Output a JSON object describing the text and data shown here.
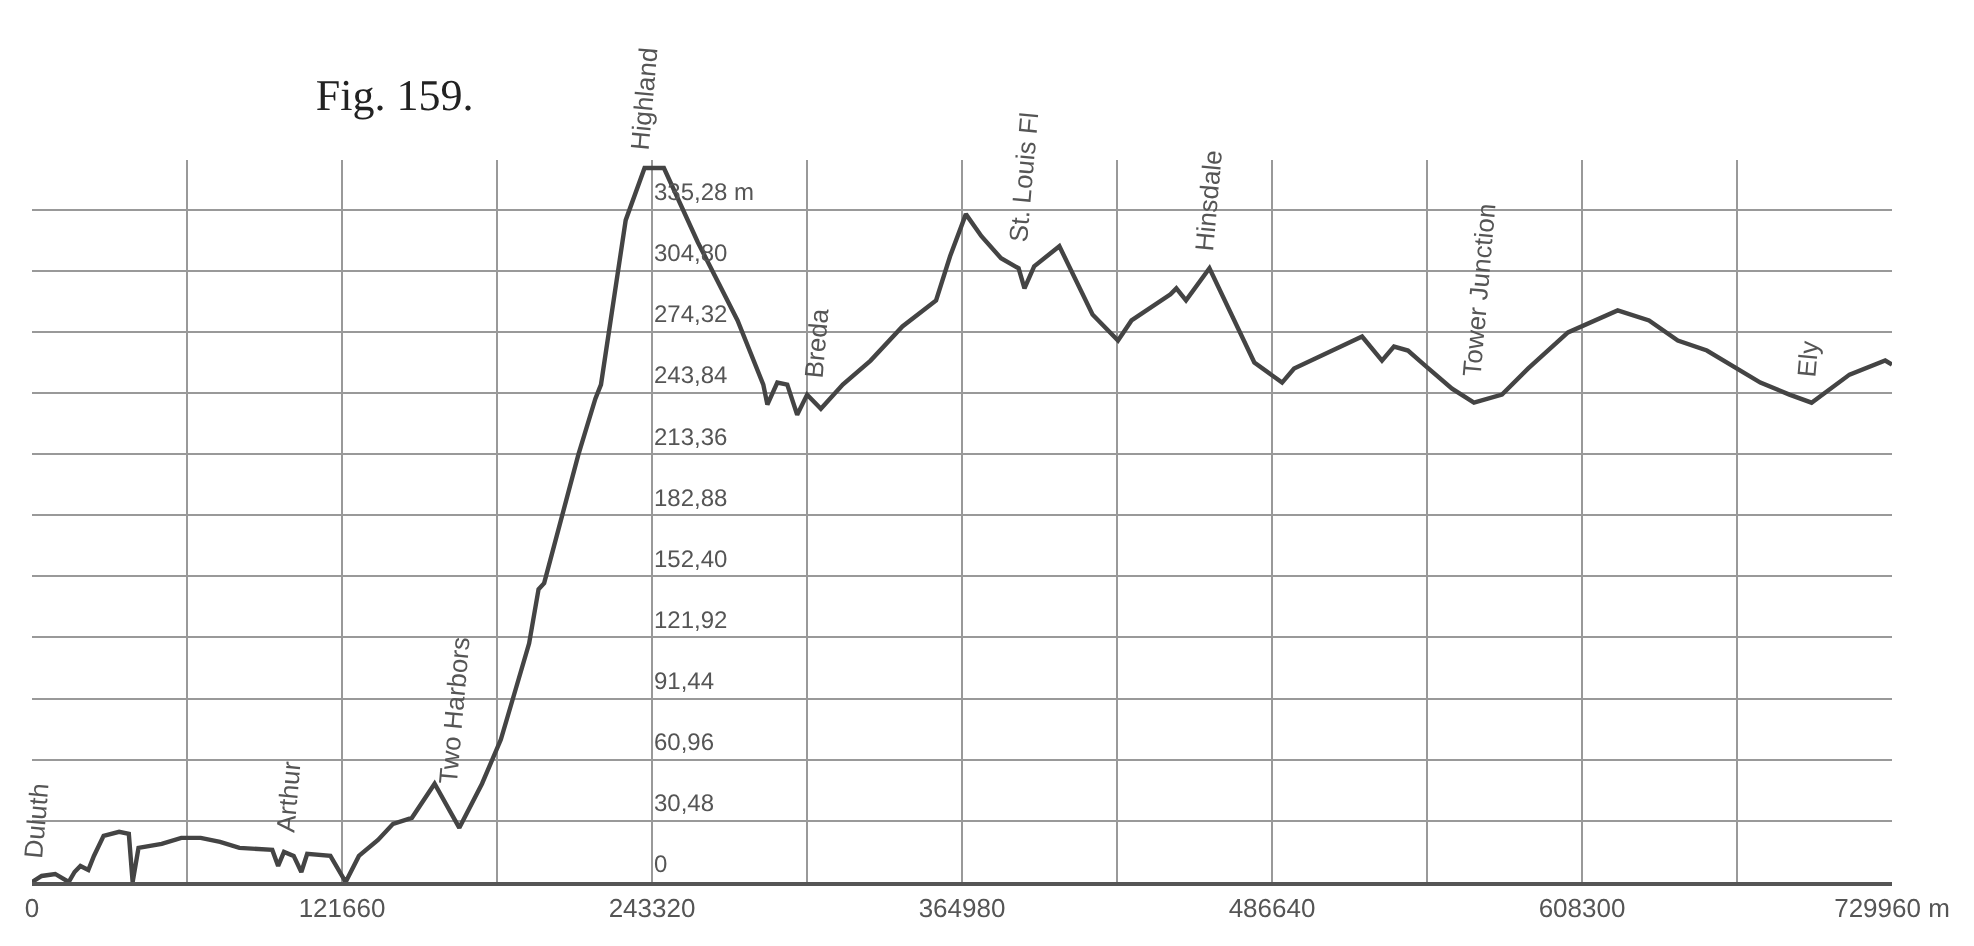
{
  "chart_data": {
    "type": "line",
    "title": "Fig. 159.",
    "x": [
      0,
      3800,
      9100,
      14400,
      16700,
      19000,
      22100,
      24300,
      28100,
      34200,
      38000,
      39500,
      41800,
      50900,
      58600,
      66200,
      73800,
      81400,
      94300,
      96600,
      98900,
      102700,
      105700,
      108000,
      117100,
      123100,
      128300,
      135800,
      141700,
      149100,
      158000,
      167700,
      176600,
      184000,
      188400,
      195100,
      198800,
      201000,
      214400,
      221100,
      223300,
      233000,
      240400,
      248000,
      261300,
      276900,
      287000,
      288600,
      292500,
      296400,
      300300,
      304200,
      309600,
      318200,
      329100,
      341600,
      354800,
      360300,
      366500,
      372600,
      380300,
      387200,
      389500,
      393300,
      403200,
      416200,
      426200,
      431500,
      446800,
      449100,
      452900,
      462100,
      479700,
      490600,
      495300,
      522000,
      529800,
      534500,
      540000,
      546300,
      557300,
      565900,
      576900,
      587100,
      602800,
      622300,
      634600,
      645900,
      657300,
      678300,
      689700,
      698400,
      713300,
      727300,
      729960
    ],
    "values": [
      0,
      3,
      4,
      0,
      5,
      8,
      6,
      13,
      23,
      25,
      24,
      0,
      17,
      19,
      22,
      22,
      20,
      17,
      16,
      8,
      15,
      13,
      5,
      14,
      13,
      0,
      13,
      21,
      29,
      32,
      49,
      27,
      49,
      71,
      90,
      119,
      146,
      149,
      213,
      241,
      248,
      330,
      356,
      356,
      319,
      280,
      248,
      238,
      249,
      248,
      233,
      243,
      236,
      248,
      260,
      277,
      290,
      312,
      333,
      322,
      311,
      306,
      296,
      307,
      317,
      283,
      270,
      280,
      293,
      296,
      290,
      306,
      259,
      249,
      256,
      272,
      260,
      267,
      265,
      258,
      246,
      239,
      243,
      256,
      274,
      285,
      280,
      270,
      265,
      249,
      243,
      239,
      253,
      260,
      258
    ],
    "color": "#444444",
    "marker": "none",
    "line_style": "solid",
    "xlim": [
      0,
      729960
    ],
    "xticks": [
      0,
      {
        "value": 60830,
        "label": null
      },
      121660,
      {
        "value": 182490,
        "label": null
      },
      243320,
      {
        "value": 304150,
        "label": null
      },
      364980,
      {
        "value": 425810,
        "label": null
      },
      486640,
      {
        "value": 547470,
        "label": null
      },
      608300,
      {
        "value": 669130,
        "label": null
      },
      {
        "value": 729960,
        "label": "729960 m"
      }
    ],
    "ylim": [
      0,
      360
    ],
    "yticks": [
      0,
      {
        "value": 30.48,
        "label": "30,48"
      },
      {
        "value": 60.96,
        "label": "60,96"
      },
      {
        "value": 91.44,
        "label": "91,44"
      },
      {
        "value": 121.92,
        "label": "121,92"
      },
      {
        "value": 152.4,
        "label": "152,40"
      },
      {
        "value": 182.88,
        "label": "182,88"
      },
      {
        "value": 213.36,
        "label": "213,36"
      },
      {
        "value": 243.84,
        "label": "243,84"
      },
      {
        "value": 274.32,
        "label": "274,32"
      },
      {
        "value": 304.8,
        "label": "304,80"
      },
      {
        "value": 335.28,
        "label": "335,28 m"
      }
    ],
    "grid": true,
    "annotations": [
      {
        "text": "Duluth",
        "x": 1500,
        "y": 3
      },
      {
        "text": "Arthur",
        "x": 100400,
        "y": 16
      },
      {
        "text": "Two Harbors",
        "x": 165500,
        "y": 40
      },
      {
        "text": "Highland",
        "x": 240400,
        "y": 356
      },
      {
        "text": "Breda",
        "x": 307600,
        "y": 243
      },
      {
        "text": "St. Louis Fl",
        "x": 389500,
        "y": 310
      },
      {
        "text": "Hinsdale",
        "x": 462100,
        "y": 306
      },
      {
        "text": "Tower Junction",
        "x": 567600,
        "y": 243
      },
      {
        "text": "Ely",
        "x": 696600,
        "y": 243
      }
    ]
  }
}
